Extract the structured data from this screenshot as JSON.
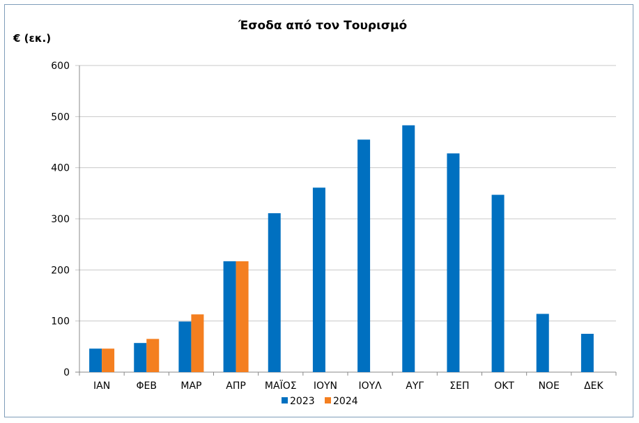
{
  "chart_data": {
    "type": "bar",
    "title": "Έσοδα από τον Τουρισμό",
    "ylabel": "€ (εκ.)",
    "xlabel": "",
    "categories": [
      "ΙΑΝ",
      "ΦΕΒ",
      "ΜΑΡ",
      "ΑΠΡ",
      "ΜΑΪΟΣ",
      "ΙΟΥΝ",
      "ΙΟΥΛ",
      "ΑΥΓ",
      "ΣΕΠ",
      "ΟΚΤ",
      "ΝΟΕ",
      "ΔΕΚ"
    ],
    "series": [
      {
        "name": "2023",
        "color": "#0070c0",
        "values": [
          46,
          57,
          99,
          217,
          311,
          361,
          455,
          483,
          428,
          347,
          114,
          75
        ]
      },
      {
        "name": "2024",
        "color": "#f47f20",
        "values": [
          46,
          65,
          113,
          217,
          null,
          null,
          null,
          null,
          null,
          null,
          null,
          null
        ]
      }
    ],
    "ylim": [
      0,
      600
    ],
    "yticks": [
      0,
      100,
      200,
      300,
      400,
      500,
      600
    ],
    "grid": true,
    "legend_position": "bottom"
  }
}
